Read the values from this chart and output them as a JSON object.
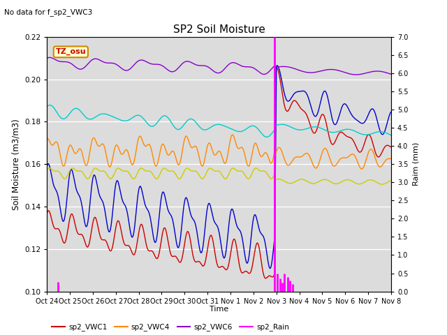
{
  "title": "SP2 Soil Moisture",
  "subtitle": "No data for f_sp2_VWC3",
  "xlabel": "Time",
  "ylabel_left": "Soil Moisture (m3/m3)",
  "ylabel_right": "Raim (mm)",
  "tz_label": "TZ_osu",
  "ylim_left": [
    0.1,
    0.22
  ],
  "ylim_right": [
    0.0,
    7.0
  ],
  "yticks_left": [
    0.1,
    0.12,
    0.14,
    0.16,
    0.18,
    0.2,
    0.22
  ],
  "yticks_right": [
    0.0,
    0.5,
    1.0,
    1.5,
    2.0,
    2.5,
    3.0,
    3.5,
    4.0,
    4.5,
    5.0,
    5.5,
    6.0,
    6.5,
    7.0
  ],
  "background_color": "#dcdcdc",
  "figure_bg": "#ffffff",
  "tick_labels": [
    "Oct 24",
    "Oct 25",
    "Oct 26",
    "Oct 27",
    "Oct 28",
    "Oct 29",
    "Oct 30",
    "Oct 31",
    "Nov 1",
    "Nov 2",
    "Nov 3",
    "Nov 4",
    "Nov 5",
    "Nov 6",
    "Nov 7",
    "Nov 8"
  ],
  "colors": {
    "vwc1": "#cc0000",
    "vwc2": "#0000cc",
    "vwc4": "#ff8800",
    "vwc5": "#cccc00",
    "vwc6": "#8800cc",
    "vwc7": "#00cccc",
    "rain": "#ff00ff"
  },
  "rain_day": 9.93,
  "n_points": 1500
}
